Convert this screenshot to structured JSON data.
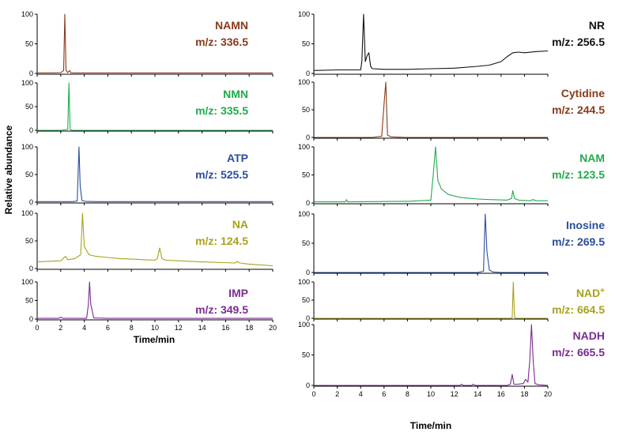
{
  "ylabel": "Relative abundance",
  "xlabel": "Time/min",
  "chart_data": [
    {
      "type": "line",
      "name": "NAMN",
      "mz": "m/z: 336.5",
      "color": "#8B3A1A",
      "xlim": [
        0,
        20
      ],
      "ylim": [
        0,
        100
      ],
      "yticks": [
        "0",
        "50",
        "100"
      ],
      "x": [
        0,
        1,
        2,
        2.25,
        2.35,
        2.45,
        2.6,
        2.75,
        2.85,
        3,
        5,
        10,
        15,
        20
      ],
      "y": [
        1,
        1,
        1.2,
        5,
        100,
        5,
        1.5,
        5,
        1.5,
        1,
        1,
        1,
        1,
        1
      ]
    },
    {
      "type": "line",
      "name": "NMN",
      "mz": "m/z: 335.5",
      "color": "#22AA4C",
      "xlim": [
        0,
        20
      ],
      "ylim": [
        0,
        100
      ],
      "yticks": [
        "0",
        "50",
        "100"
      ],
      "x": [
        0,
        2,
        2.6,
        2.7,
        2.8,
        2.95,
        4,
        10,
        20
      ],
      "y": [
        0,
        0,
        2,
        100,
        2,
        0,
        0,
        0,
        0
      ]
    },
    {
      "type": "line",
      "name": "ATP",
      "mz": "m/z: 525.5",
      "color": "#2A4E9C",
      "xlim": [
        0,
        20
      ],
      "ylim": [
        0,
        100
      ],
      "yticks": [
        "0",
        "50",
        "100"
      ],
      "x": [
        0,
        3,
        3.4,
        3.55,
        3.65,
        3.8,
        4.1,
        5,
        10,
        15,
        20
      ],
      "y": [
        1,
        1,
        2,
        100,
        30,
        3,
        1.5,
        1,
        1,
        1,
        1
      ]
    },
    {
      "type": "line",
      "name": "NA",
      "mz": "m/z: 124.5",
      "color": "#A8A21C",
      "xlim": [
        0,
        20
      ],
      "ylim": [
        0,
        100
      ],
      "yticks": [
        "0",
        "50",
        "100"
      ],
      "x": [
        0,
        2,
        2.4,
        2.6,
        3.2,
        3.7,
        3.85,
        4.0,
        4.4,
        5,
        6,
        7,
        8,
        9,
        10,
        10.2,
        10.4,
        10.6,
        10.9,
        12,
        14,
        16.8,
        17,
        17.2,
        18,
        20
      ],
      "y": [
        12,
        14,
        22,
        16,
        18,
        25,
        100,
        40,
        25,
        22,
        20,
        18,
        17,
        16,
        15,
        18,
        37,
        18,
        15,
        14,
        12,
        10,
        13,
        10,
        8,
        5
      ]
    },
    {
      "type": "line",
      "name": "IMP",
      "mz": "m/z: 349.5",
      "color": "#7A2C8F",
      "xlim": [
        0,
        20
      ],
      "ylim": [
        0,
        100
      ],
      "yticks": [
        "0",
        "50",
        "100"
      ],
      "x": [
        0,
        1.8,
        2,
        2.2,
        4.2,
        4.35,
        4.45,
        4.55,
        4.8,
        6,
        8,
        10,
        12,
        14,
        16,
        18,
        20
      ],
      "y": [
        2,
        2,
        5,
        2,
        2,
        40,
        100,
        40,
        3,
        2,
        2,
        2,
        2,
        2,
        2,
        2,
        2
      ]
    },
    {
      "type": "line",
      "name": "NR",
      "mz": "m/z: 256.5",
      "color": "#111111",
      "xlim": [
        0,
        20
      ],
      "ylim": [
        0,
        100
      ],
      "yticks": [
        "0",
        "50",
        "100"
      ],
      "x": [
        0,
        2,
        4,
        4.1,
        4.25,
        4.4,
        4.55,
        4.7,
        4.85,
        5,
        6,
        8,
        10,
        12,
        14,
        15,
        16,
        16.5,
        17,
        17.5,
        18,
        19,
        20
      ],
      "y": [
        5,
        6,
        6,
        20,
        100,
        20,
        30,
        35,
        12,
        8,
        7,
        7,
        8,
        9,
        12,
        14,
        20,
        28,
        35,
        36,
        35,
        37,
        38
      ]
    },
    {
      "type": "line",
      "name": "Cytidine",
      "mz": "m/z: 244.5",
      "color": "#8B3A1A",
      "xlim": [
        0,
        20
      ],
      "ylim": [
        0,
        100
      ],
      "yticks": [
        "0",
        "50",
        "100"
      ],
      "x": [
        0,
        5,
        5.8,
        6.0,
        6.15,
        6.3,
        6.6,
        8,
        12,
        16,
        20
      ],
      "y": [
        0,
        0,
        2,
        60,
        100,
        4,
        1,
        0,
        0,
        0,
        0
      ]
    },
    {
      "type": "line",
      "name": "NAM",
      "mz": "m/z: 123.5",
      "color": "#22AA4C",
      "xlim": [
        0,
        20
      ],
      "ylim": [
        0,
        100
      ],
      "yticks": [
        "0",
        "50",
        "100"
      ],
      "x": [
        0,
        2.7,
        2.8,
        2.9,
        8,
        10,
        10.2,
        10.4,
        10.6,
        10.9,
        11.5,
        12.5,
        14,
        15,
        16.5,
        16.9,
        17.0,
        17.15,
        17.5,
        18.5,
        18.7,
        19,
        20
      ],
      "y": [
        2,
        2,
        6,
        2,
        3,
        5,
        50,
        100,
        40,
        25,
        15,
        10,
        7,
        6,
        5,
        8,
        22,
        8,
        5,
        4,
        6,
        4,
        4
      ]
    },
    {
      "type": "line",
      "name": "Inosine",
      "mz": "m/z: 269.5",
      "color": "#2A4E9C",
      "xlim": [
        0,
        20
      ],
      "ylim": [
        0,
        100
      ],
      "yticks": [
        "0",
        "50",
        "100"
      ],
      "x": [
        0,
        14,
        14.5,
        14.65,
        14.8,
        15.0,
        15.3,
        16,
        20
      ],
      "y": [
        0,
        0,
        2,
        100,
        35,
        4,
        1,
        0,
        0
      ]
    },
    {
      "type": "line",
      "name": "NAD+",
      "mz": "m/z: 664.5",
      "color": "#A8A21C",
      "xlim": [
        0,
        20
      ],
      "ylim": [
        0,
        100
      ],
      "yticks": [
        "0",
        "50",
        "100"
      ],
      "x": [
        0,
        16.8,
        16.95,
        17.05,
        17.15,
        17.3,
        20
      ],
      "y": [
        0,
        0,
        2,
        100,
        3,
        0,
        0
      ]
    },
    {
      "type": "line",
      "name": "NADH",
      "mz": "m/z: 665.5",
      "color": "#7A2C8F",
      "xlim": [
        0,
        20
      ],
      "ylim": [
        0,
        100
      ],
      "yticks": [
        "0",
        "50",
        "100"
      ],
      "xticks": [
        "0",
        "2",
        "4",
        "6",
        "8",
        "10",
        "12",
        "14",
        "16",
        "18",
        "20"
      ],
      "x": [
        0,
        12,
        12.5,
        12.6,
        12.8,
        13.5,
        13.6,
        13.8,
        16.5,
        16.8,
        16.95,
        17.1,
        17.4,
        17.9,
        18.1,
        18.3,
        18.45,
        18.6,
        18.75,
        18.9,
        19.2,
        20
      ],
      "y": [
        0,
        0,
        0,
        2,
        0,
        0,
        2,
        0,
        0,
        2,
        18,
        2,
        2,
        3,
        10,
        5,
        40,
        100,
        40,
        3,
        1,
        0
      ]
    }
  ],
  "xticks": [
    "0",
    "2",
    "4",
    "6",
    "8",
    "10",
    "12",
    "14",
    "16",
    "18",
    "20"
  ]
}
